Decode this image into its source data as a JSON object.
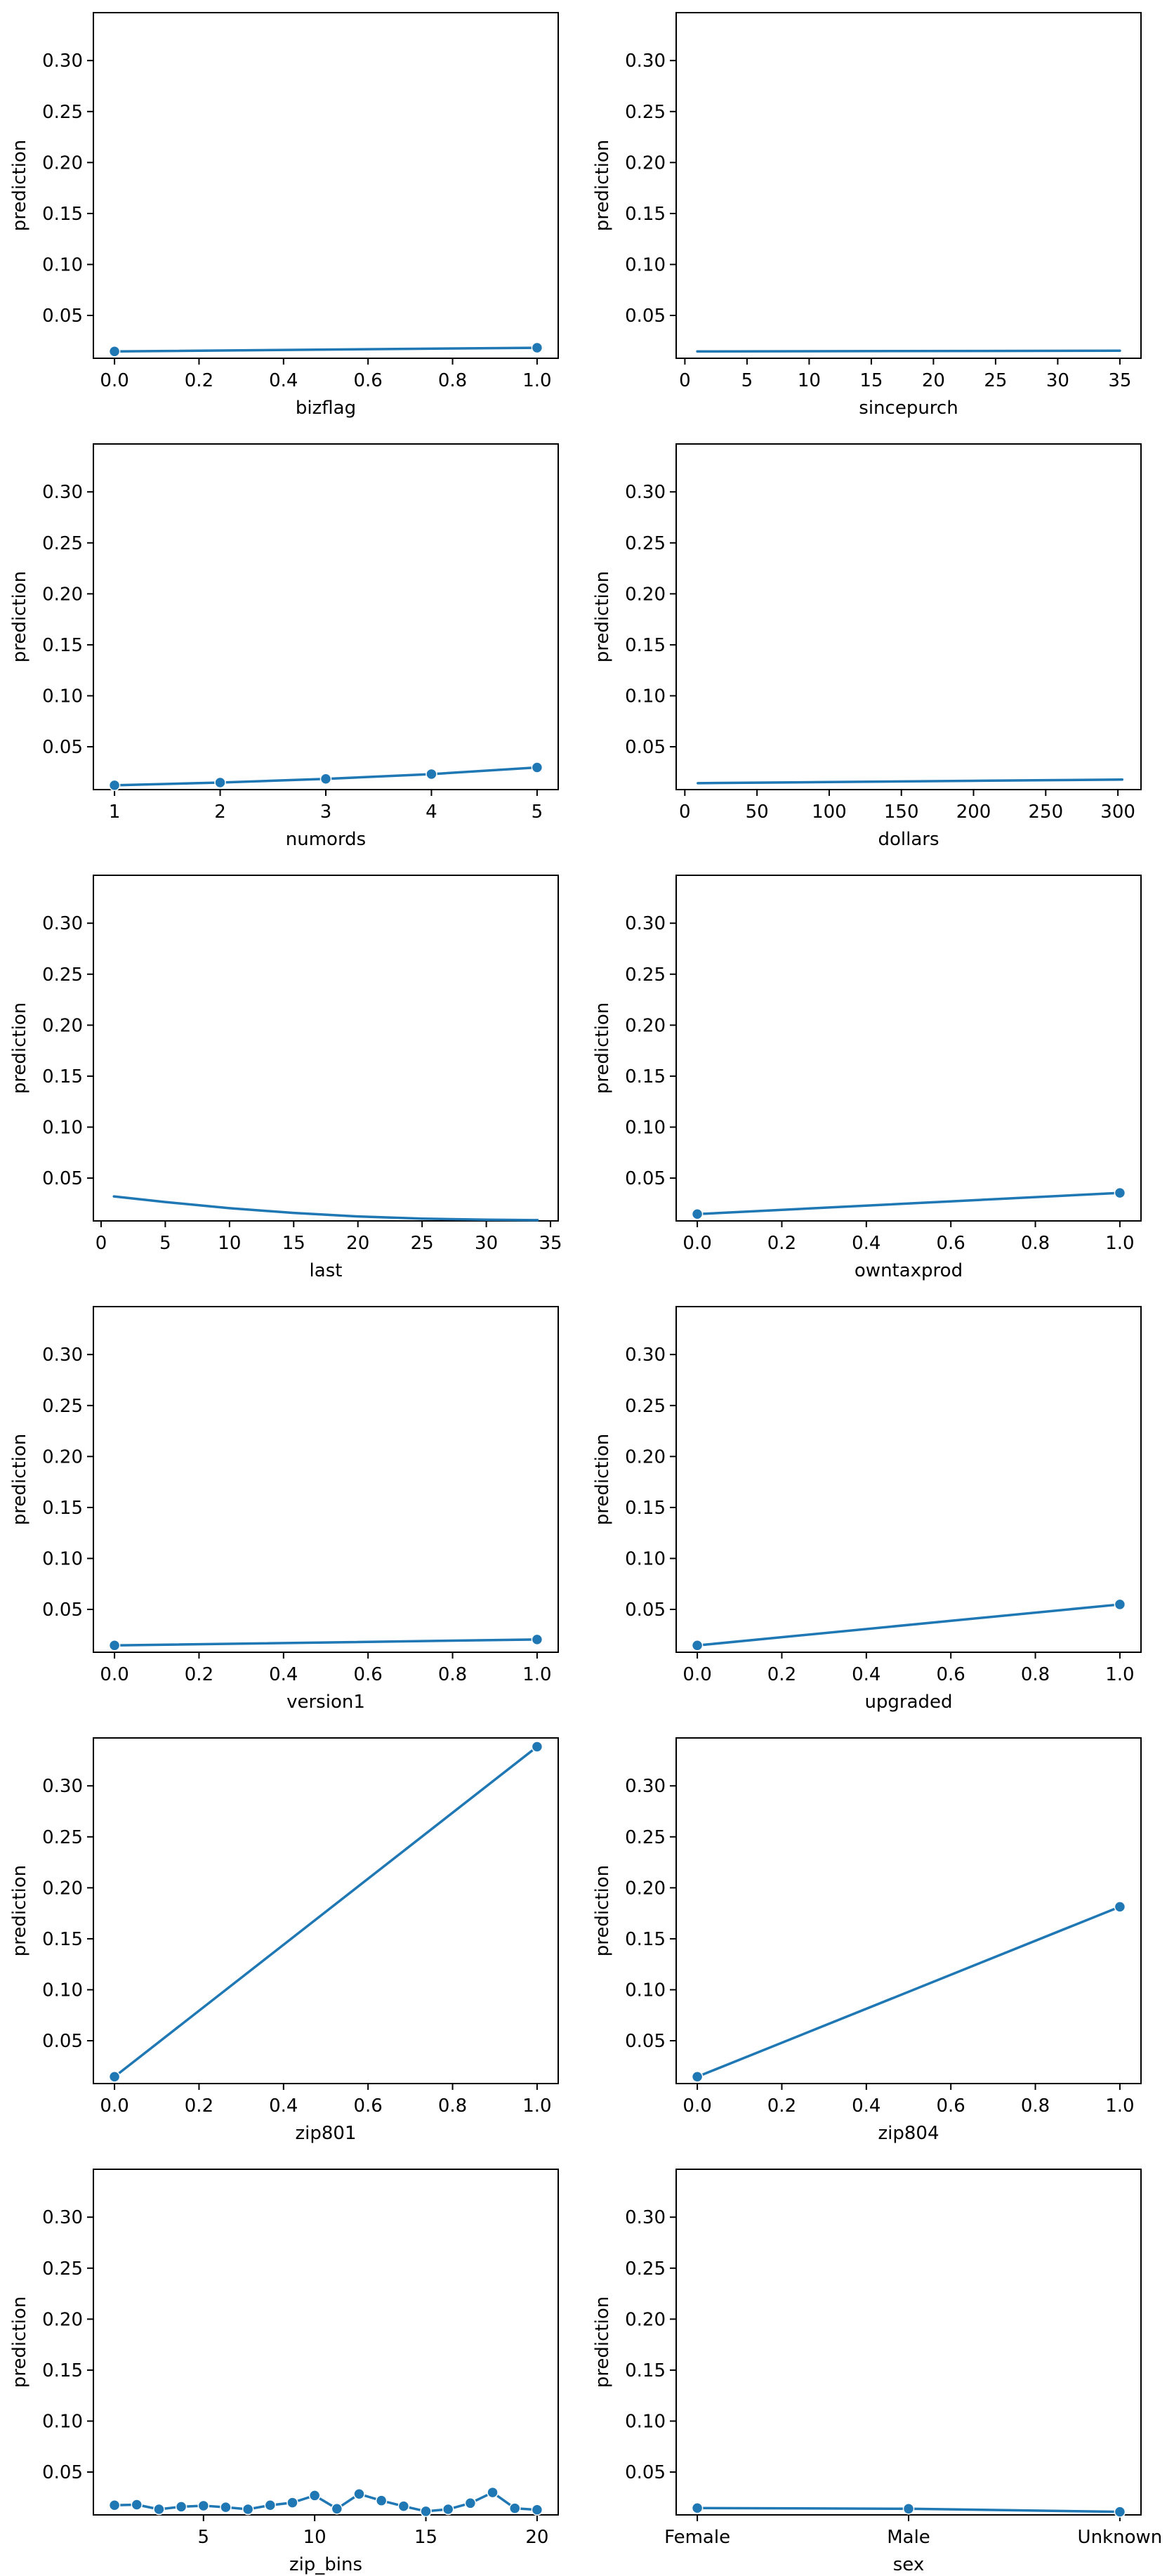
{
  "colors": {
    "series": "#1f77b4",
    "axis": "#000000",
    "background": "#ffffff"
  },
  "chart_data": [
    {
      "type": "line",
      "xlabel": "bizflag",
      "ylabel": "prediction",
      "ylim": [
        0.008,
        0.347
      ],
      "yticks": [
        "0.05",
        "0.10",
        "0.15",
        "0.20",
        "0.25",
        "0.30"
      ],
      "xlim": [
        -0.05,
        1.05
      ],
      "xticks": [
        "0.0",
        "0.2",
        "0.4",
        "0.6",
        "0.8",
        "1.0"
      ],
      "x": [
        0,
        1
      ],
      "y": [
        0.0147,
        0.0183
      ],
      "markers": true
    },
    {
      "type": "line",
      "xlabel": "sincepurch",
      "ylabel": "prediction",
      "ylim": [
        0.008,
        0.347
      ],
      "yticks": [
        "0.05",
        "0.10",
        "0.15",
        "0.20",
        "0.25",
        "0.30"
      ],
      "xlim": [
        -0.7,
        36.7
      ],
      "xticks": [
        "0",
        "5",
        "10",
        "15",
        "20",
        "25",
        "30",
        "35"
      ],
      "x": [
        1,
        35
      ],
      "y": [
        0.0147,
        0.0154
      ],
      "markers": false
    },
    {
      "type": "line",
      "xlabel": "numords",
      "ylabel": "prediction",
      "ylim": [
        0.008,
        0.347
      ],
      "yticks": [
        "0.05",
        "0.10",
        "0.15",
        "0.20",
        "0.25",
        "0.30"
      ],
      "xlim": [
        0.8,
        5.2
      ],
      "xticks": [
        "1",
        "2",
        "3",
        "4",
        "5"
      ],
      "x": [
        1,
        2,
        3,
        4,
        5
      ],
      "y": [
        0.0122,
        0.0149,
        0.0185,
        0.0232,
        0.0297
      ],
      "markers": true
    },
    {
      "type": "line",
      "xlabel": "dollars",
      "ylabel": "prediction",
      "ylim": [
        0.008,
        0.347
      ],
      "yticks": [
        "0.05",
        "0.10",
        "0.15",
        "0.20",
        "0.25",
        "0.30"
      ],
      "xlim": [
        -6,
        316
      ],
      "xticks": [
        "0",
        "50",
        "100",
        "150",
        "200",
        "250",
        "300"
      ],
      "x": [
        9,
        50,
        100,
        150,
        200,
        250,
        303
      ],
      "y": [
        0.0143,
        0.0148,
        0.0154,
        0.016,
        0.0166,
        0.0172,
        0.0178
      ],
      "markers": false
    },
    {
      "type": "line",
      "xlabel": "last",
      "ylabel": "prediction",
      "ylim": [
        0.008,
        0.347
      ],
      "yticks": [
        "0.05",
        "0.10",
        "0.15",
        "0.20",
        "0.25",
        "0.30"
      ],
      "xlim": [
        -0.6,
        35.6
      ],
      "xticks": [
        "0",
        "5",
        "10",
        "15",
        "20",
        "25",
        "30",
        "35"
      ],
      "x": [
        1,
        5,
        10,
        15,
        20,
        25,
        30,
        34
      ],
      "y": [
        0.032,
        0.0265,
        0.0205,
        0.0158,
        0.0124,
        0.0102,
        0.0092,
        0.0088
      ],
      "markers": false
    },
    {
      "type": "line",
      "xlabel": "owntaxprod",
      "ylabel": "prediction",
      "ylim": [
        0.008,
        0.347
      ],
      "yticks": [
        "0.05",
        "0.10",
        "0.15",
        "0.20",
        "0.25",
        "0.30"
      ],
      "xlim": [
        -0.05,
        1.05
      ],
      "xticks": [
        "0.0",
        "0.2",
        "0.4",
        "0.6",
        "0.8",
        "1.0"
      ],
      "x": [
        0,
        1
      ],
      "y": [
        0.0147,
        0.0355
      ],
      "markers": true
    },
    {
      "type": "line",
      "xlabel": "version1",
      "ylabel": "prediction",
      "ylim": [
        0.008,
        0.347
      ],
      "yticks": [
        "0.05",
        "0.10",
        "0.15",
        "0.20",
        "0.25",
        "0.30"
      ],
      "xlim": [
        -0.05,
        1.05
      ],
      "xticks": [
        "0.0",
        "0.2",
        "0.4",
        "0.6",
        "0.8",
        "1.0"
      ],
      "x": [
        0,
        1
      ],
      "y": [
        0.0147,
        0.0205
      ],
      "markers": true
    },
    {
      "type": "line",
      "xlabel": "upgraded",
      "ylabel": "prediction",
      "ylim": [
        0.008,
        0.347
      ],
      "yticks": [
        "0.05",
        "0.10",
        "0.15",
        "0.20",
        "0.25",
        "0.30"
      ],
      "xlim": [
        -0.05,
        1.05
      ],
      "xticks": [
        "0.0",
        "0.2",
        "0.4",
        "0.6",
        "0.8",
        "1.0"
      ],
      "x": [
        0,
        1
      ],
      "y": [
        0.0147,
        0.0549
      ],
      "markers": true
    },
    {
      "type": "line",
      "xlabel": "zip801",
      "ylabel": "prediction",
      "ylim": [
        0.008,
        0.347
      ],
      "yticks": [
        "0.05",
        "0.10",
        "0.15",
        "0.20",
        "0.25",
        "0.30"
      ],
      "xlim": [
        -0.05,
        1.05
      ],
      "xticks": [
        "0.0",
        "0.2",
        "0.4",
        "0.6",
        "0.8",
        "1.0"
      ],
      "x": [
        0,
        1
      ],
      "y": [
        0.0147,
        0.3384
      ],
      "markers": true
    },
    {
      "type": "line",
      "xlabel": "zip804",
      "ylabel": "prediction",
      "ylim": [
        0.008,
        0.347
      ],
      "yticks": [
        "0.05",
        "0.10",
        "0.15",
        "0.20",
        "0.25",
        "0.30"
      ],
      "xlim": [
        -0.05,
        1.05
      ],
      "xticks": [
        "0.0",
        "0.2",
        "0.4",
        "0.6",
        "0.8",
        "1.0"
      ],
      "x": [
        0,
        1
      ],
      "y": [
        0.0147,
        0.1814
      ],
      "markers": true
    },
    {
      "type": "line",
      "xlabel": "zip_bins",
      "ylabel": "prediction",
      "ylim": [
        0.008,
        0.347
      ],
      "yticks": [
        "0.05",
        "0.10",
        "0.15",
        "0.20",
        "0.25",
        "0.30"
      ],
      "xlim": [
        0.05,
        20.95
      ],
      "xticks": [
        "5",
        "10",
        "15",
        "20"
      ],
      "xtick_values": [
        5,
        10,
        15,
        20
      ],
      "x": [
        1,
        2,
        3,
        4,
        5,
        6,
        7,
        8,
        9,
        10,
        11,
        12,
        13,
        14,
        15,
        16,
        17,
        18,
        19,
        20
      ],
      "y": [
        0.0175,
        0.018,
        0.0135,
        0.016,
        0.017,
        0.0155,
        0.0135,
        0.0175,
        0.02,
        0.027,
        0.014,
        0.0285,
        0.022,
        0.0165,
        0.0115,
        0.0135,
        0.0195,
        0.03,
        0.0145,
        0.013
      ],
      "markers": true
    },
    {
      "type": "line",
      "xlabel": "sex",
      "ylabel": "prediction",
      "ylim": [
        0.008,
        0.347
      ],
      "yticks": [
        "0.05",
        "0.10",
        "0.15",
        "0.20",
        "0.25",
        "0.30"
      ],
      "xlim": [
        -0.1,
        2.1
      ],
      "xticks": [
        "Female",
        "Male",
        "Unknown"
      ],
      "xtick_values": [
        0,
        1,
        2
      ],
      "x": [
        0,
        1,
        2
      ],
      "y": [
        0.0147,
        0.014,
        0.011
      ],
      "markers": true
    }
  ]
}
